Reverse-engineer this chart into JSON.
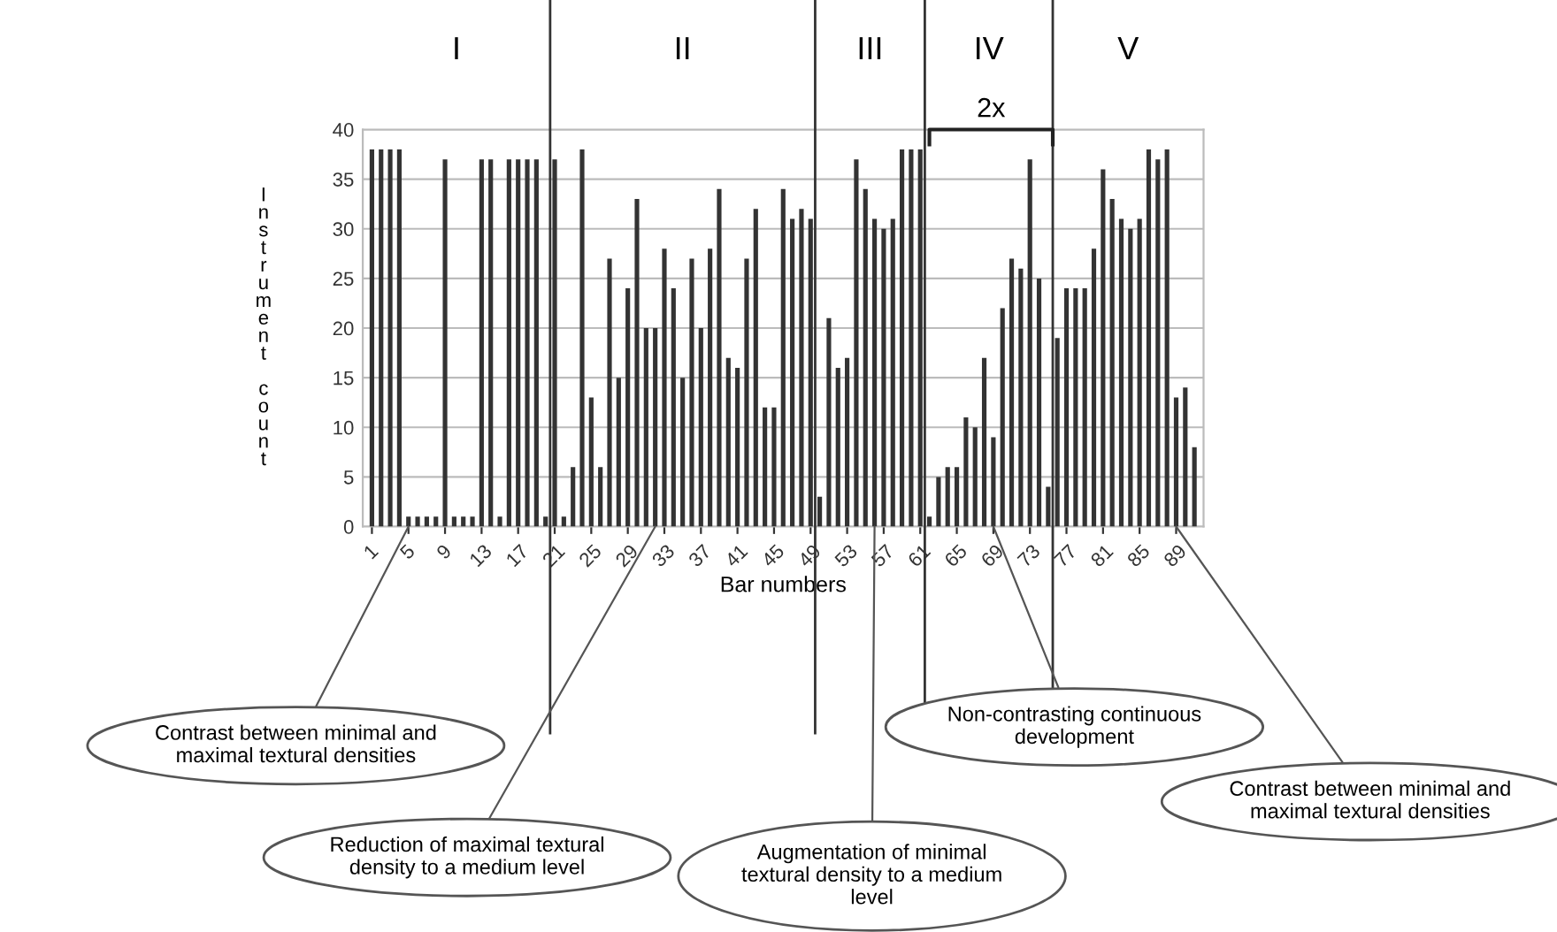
{
  "chart_data": {
    "type": "bar",
    "ylabel": "Instrument count",
    "xlabel": "Bar numbers",
    "x": [
      1,
      2,
      3,
      4,
      5,
      6,
      7,
      8,
      9,
      10,
      11,
      12,
      13,
      14,
      15,
      16,
      17,
      18,
      19,
      20,
      21,
      22,
      23,
      24,
      25,
      26,
      27,
      28,
      29,
      30,
      31,
      32,
      33,
      34,
      35,
      36,
      37,
      38,
      39,
      40,
      41,
      42,
      43,
      44,
      45,
      46,
      47,
      48,
      49,
      50,
      51,
      52,
      53,
      54,
      55,
      56,
      57,
      58,
      59,
      60,
      61,
      62,
      63,
      64,
      65,
      66,
      67,
      68,
      69,
      70,
      71,
      72,
      73,
      74,
      75,
      76,
      77,
      78,
      79,
      80,
      81,
      82,
      83,
      84,
      85,
      86,
      87,
      88,
      89,
      90,
      91
    ],
    "values": [
      38,
      38,
      38,
      38,
      1,
      1,
      1,
      1,
      37,
      1,
      1,
      1,
      37,
      37,
      1,
      37,
      37,
      37,
      37,
      1,
      37,
      1,
      6,
      38,
      13,
      6,
      27,
      15,
      24,
      33,
      20,
      20,
      28,
      24,
      15,
      27,
      20,
      28,
      34,
      17,
      16,
      27,
      32,
      12,
      12,
      34,
      31,
      32,
      31,
      3,
      21,
      16,
      17,
      37,
      34,
      31,
      30,
      31,
      38,
      38,
      38,
      1,
      5,
      6,
      6,
      11,
      10,
      17,
      9,
      22,
      27,
      26,
      37,
      25,
      4,
      19,
      24,
      24,
      24,
      28,
      36,
      33,
      31,
      30,
      31,
      38,
      37,
      38,
      13,
      14,
      8
    ],
    "color": "#333333",
    "xlim": [
      0,
      92
    ],
    "xticks": [
      1,
      5,
      9,
      13,
      17,
      21,
      25,
      29,
      33,
      37,
      41,
      45,
      49,
      53,
      57,
      61,
      65,
      69,
      73,
      77,
      81,
      85,
      89
    ],
    "ylim": [
      0,
      40
    ],
    "yticks": [
      0,
      5,
      10,
      15,
      20,
      25,
      30,
      35,
      40
    ],
    "grid": "y",
    "ref_lines": [
      {
        "axis": "x",
        "value": 20.5,
        "color": "#333333"
      },
      {
        "axis": "x",
        "value": 49.5,
        "color": "#333333"
      },
      {
        "axis": "x",
        "value": 61.5,
        "color": "#333333"
      },
      {
        "axis": "x",
        "value": 75.5,
        "color": "#333333"
      }
    ],
    "annotations": [
      "I",
      "II",
      "III",
      "IV",
      "V",
      "2x",
      {
        "text": "Contrast between minimal and maximal textural densities",
        "x": 5,
        "y": 0
      },
      {
        "text": "Reduction of maximal textural density to a medium level",
        "x": 32,
        "y": 0
      },
      {
        "text": "Augmentation of minimal textural density to a medium level",
        "x": 56,
        "y": 0
      },
      {
        "text": "Non-contrasting continuous development",
        "x": 69,
        "y": 0
      },
      {
        "text": "Contrast between minimal and maximal textural densities",
        "x": 89,
        "y": 0
      }
    ]
  }
}
